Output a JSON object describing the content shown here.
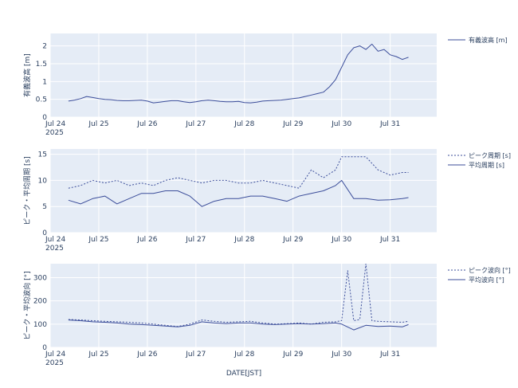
{
  "colors": {
    "line": "#3b4d9a",
    "plot_bg": "#e5ecf6",
    "grid": "#ffffff",
    "text": "#2a3f5f"
  },
  "x_axis_label": "DATE[JST]",
  "x_ticks": [
    {
      "value": 0,
      "label": "Jul 24",
      "sub": "2025"
    },
    {
      "value": 1,
      "label": "Jul 25",
      "sub": ""
    },
    {
      "value": 2,
      "label": "Jul 26",
      "sub": ""
    },
    {
      "value": 3,
      "label": "Jul 27",
      "sub": ""
    },
    {
      "value": 4,
      "label": "Jul 28",
      "sub": ""
    },
    {
      "value": 5,
      "label": "Jul 29",
      "sub": ""
    },
    {
      "value": 6,
      "label": "Jul 30",
      "sub": ""
    },
    {
      "value": 7,
      "label": "Jul 31",
      "sub": ""
    }
  ],
  "chart_data": [
    {
      "type": "line",
      "ylabel": "有義波高 [m]",
      "xlim": [
        "2025-07-24 00:00",
        "2025-07-31 23:00"
      ],
      "ylim": [
        0,
        2.35
      ],
      "yticks": [
        0,
        0.5,
        1,
        1.5,
        2
      ],
      "ytick_labels": [
        "0",
        "0.5",
        "1",
        "1.5",
        "2"
      ],
      "grid": true,
      "legend_position": "top-right",
      "series": [
        {
          "name": "有義波高 [m]",
          "dash": "solid",
          "x": [
            "07-24 09:00",
            "07-24 12:00",
            "07-24 15:00",
            "07-24 18:00",
            "07-24 21:00",
            "07-25 00:00",
            "07-25 03:00",
            "07-25 06:00",
            "07-25 09:00",
            "07-25 12:00",
            "07-25 15:00",
            "07-25 18:00",
            "07-25 21:00",
            "07-26 00:00",
            "07-26 03:00",
            "07-26 06:00",
            "07-26 09:00",
            "07-26 12:00",
            "07-26 15:00",
            "07-26 18:00",
            "07-26 21:00",
            "07-27 00:00",
            "07-27 03:00",
            "07-27 06:00",
            "07-27 09:00",
            "07-27 12:00",
            "07-27 15:00",
            "07-27 18:00",
            "07-27 21:00",
            "07-28 00:00",
            "07-28 03:00",
            "07-28 06:00",
            "07-28 09:00",
            "07-28 12:00",
            "07-28 15:00",
            "07-28 18:00",
            "07-28 21:00",
            "07-29 00:00",
            "07-29 03:00",
            "07-29 06:00",
            "07-29 09:00",
            "07-29 12:00",
            "07-29 15:00",
            "07-29 18:00",
            "07-29 21:00",
            "07-30 00:00",
            "07-30 03:00",
            "07-30 06:00",
            "07-30 09:00",
            "07-30 12:00",
            "07-30 15:00",
            "07-30 18:00",
            "07-30 21:00",
            "07-31 00:00",
            "07-31 03:00",
            "07-31 06:00",
            "07-31 09:00"
          ],
          "y": [
            0.45,
            0.48,
            0.52,
            0.58,
            0.55,
            0.52,
            0.5,
            0.49,
            0.47,
            0.46,
            0.46,
            0.47,
            0.48,
            0.45,
            0.4,
            0.42,
            0.44,
            0.46,
            0.46,
            0.43,
            0.41,
            0.43,
            0.46,
            0.48,
            0.46,
            0.44,
            0.43,
            0.43,
            0.44,
            0.41,
            0.4,
            0.42,
            0.45,
            0.46,
            0.47,
            0.48,
            0.5,
            0.52,
            0.54,
            0.58,
            0.62,
            0.66,
            0.7,
            0.85,
            1.05,
            1.4,
            1.75,
            1.95,
            2.0,
            1.9,
            2.05,
            1.85,
            1.9,
            1.75,
            1.7,
            1.62,
            1.68
          ]
        }
      ]
    },
    {
      "type": "line",
      "ylabel": "ピーク・平均周期 [s]",
      "xlim": [
        "2025-07-24 00:00",
        "2025-07-31 23:00"
      ],
      "ylim": [
        0,
        16
      ],
      "yticks": [
        0,
        5,
        10,
        15
      ],
      "ytick_labels": [
        "0",
        "5",
        "10",
        "15"
      ],
      "grid": true,
      "legend_position": "top-right",
      "series": [
        {
          "name": "ピーク周期 [s]",
          "dash": "dotted",
          "x": [
            "07-24 09:00",
            "07-24 15:00",
            "07-24 21:00",
            "07-25 03:00",
            "07-25 09:00",
            "07-25 15:00",
            "07-25 21:00",
            "07-26 03:00",
            "07-26 09:00",
            "07-26 15:00",
            "07-26 21:00",
            "07-27 03:00",
            "07-27 09:00",
            "07-27 15:00",
            "07-27 21:00",
            "07-28 03:00",
            "07-28 09:00",
            "07-28 15:00",
            "07-28 21:00",
            "07-29 03:00",
            "07-29 09:00",
            "07-29 15:00",
            "07-29 21:00",
            "07-30 00:00",
            "07-30 06:00",
            "07-30 12:00",
            "07-30 18:00",
            "07-31 00:00",
            "07-31 06:00",
            "07-31 09:00"
          ],
          "y": [
            8.5,
            9.0,
            10.0,
            9.5,
            10.0,
            9.0,
            9.5,
            9.0,
            10.0,
            10.5,
            10.0,
            9.5,
            10.0,
            10.0,
            9.5,
            9.5,
            10.0,
            9.5,
            9.0,
            8.5,
            12.0,
            10.5,
            12.0,
            14.5,
            14.5,
            14.5,
            12.0,
            11.0,
            11.5,
            11.5
          ]
        },
        {
          "name": "平均周期 [s]",
          "dash": "solid",
          "x": [
            "07-24 09:00",
            "07-24 15:00",
            "07-24 21:00",
            "07-25 03:00",
            "07-25 09:00",
            "07-25 15:00",
            "07-25 21:00",
            "07-26 03:00",
            "07-26 09:00",
            "07-26 15:00",
            "07-26 21:00",
            "07-27 03:00",
            "07-27 09:00",
            "07-27 15:00",
            "07-27 21:00",
            "07-28 03:00",
            "07-28 09:00",
            "07-28 15:00",
            "07-28 21:00",
            "07-29 03:00",
            "07-29 09:00",
            "07-29 15:00",
            "07-29 21:00",
            "07-30 00:00",
            "07-30 06:00",
            "07-30 12:00",
            "07-30 18:00",
            "07-31 00:00",
            "07-31 06:00",
            "07-31 09:00"
          ],
          "y": [
            6.2,
            5.5,
            6.5,
            7.0,
            5.5,
            6.5,
            7.5,
            7.5,
            8.0,
            8.0,
            7.0,
            5.0,
            6.0,
            6.5,
            6.5,
            7.0,
            7.0,
            6.5,
            6.0,
            7.0,
            7.5,
            8.0,
            9.0,
            10.0,
            6.5,
            6.5,
            6.2,
            6.3,
            6.5,
            6.7
          ]
        }
      ]
    },
    {
      "type": "line",
      "ylabel": "ピーク・平均波向 [°]",
      "xlim": [
        "2025-07-24 00:00",
        "2025-07-31 23:00"
      ],
      "ylim": [
        0,
        360
      ],
      "yticks": [
        0,
        100,
        200,
        300
      ],
      "ytick_labels": [
        "0",
        "100",
        "200",
        "300"
      ],
      "grid": true,
      "legend_position": "top-right",
      "series": [
        {
          "name": "ピーク波向 [°]",
          "dash": "dotted",
          "x": [
            "07-24 09:00",
            "07-24 15:00",
            "07-24 21:00",
            "07-25 03:00",
            "07-25 09:00",
            "07-25 15:00",
            "07-25 21:00",
            "07-26 03:00",
            "07-26 09:00",
            "07-26 15:00",
            "07-26 21:00",
            "07-27 03:00",
            "07-27 09:00",
            "07-27 15:00",
            "07-27 21:00",
            "07-28 03:00",
            "07-28 09:00",
            "07-28 15:00",
            "07-28 21:00",
            "07-29 03:00",
            "07-29 09:00",
            "07-29 15:00",
            "07-29 21:00",
            "07-30 00:00",
            "07-30 03:00",
            "07-30 06:00",
            "07-30 09:00",
            "07-30 12:00",
            "07-30 15:00",
            "07-30 18:00",
            "07-31 00:00",
            "07-31 06:00",
            "07-31 09:00"
          ],
          "y": [
            120,
            118,
            115,
            112,
            110,
            108,
            105,
            100,
            95,
            90,
            100,
            118,
            112,
            108,
            110,
            112,
            105,
            100,
            102,
            105,
            100,
            108,
            110,
            115,
            330,
            115,
            120,
            360,
            115,
            112,
            110,
            108,
            112
          ]
        },
        {
          "name": "平均波向 [°]",
          "dash": "solid",
          "x": [
            "07-24 09:00",
            "07-24 15:00",
            "07-24 21:00",
            "07-25 03:00",
            "07-25 09:00",
            "07-25 15:00",
            "07-25 21:00",
            "07-26 03:00",
            "07-26 09:00",
            "07-26 15:00",
            "07-26 21:00",
            "07-27 03:00",
            "07-27 09:00",
            "07-27 15:00",
            "07-27 21:00",
            "07-28 03:00",
            "07-28 09:00",
            "07-28 15:00",
            "07-28 21:00",
            "07-29 03:00",
            "07-29 09:00",
            "07-29 15:00",
            "07-29 21:00",
            "07-30 00:00",
            "07-30 06:00",
            "07-30 12:00",
            "07-30 18:00",
            "07-31 00:00",
            "07-31 06:00",
            "07-31 09:00"
          ],
          "y": [
            118,
            115,
            110,
            108,
            105,
            100,
            98,
            95,
            92,
            88,
            95,
            110,
            105,
            102,
            105,
            105,
            100,
            98,
            100,
            102,
            100,
            102,
            105,
            100,
            75,
            95,
            90,
            92,
            88,
            98
          ]
        }
      ]
    }
  ]
}
